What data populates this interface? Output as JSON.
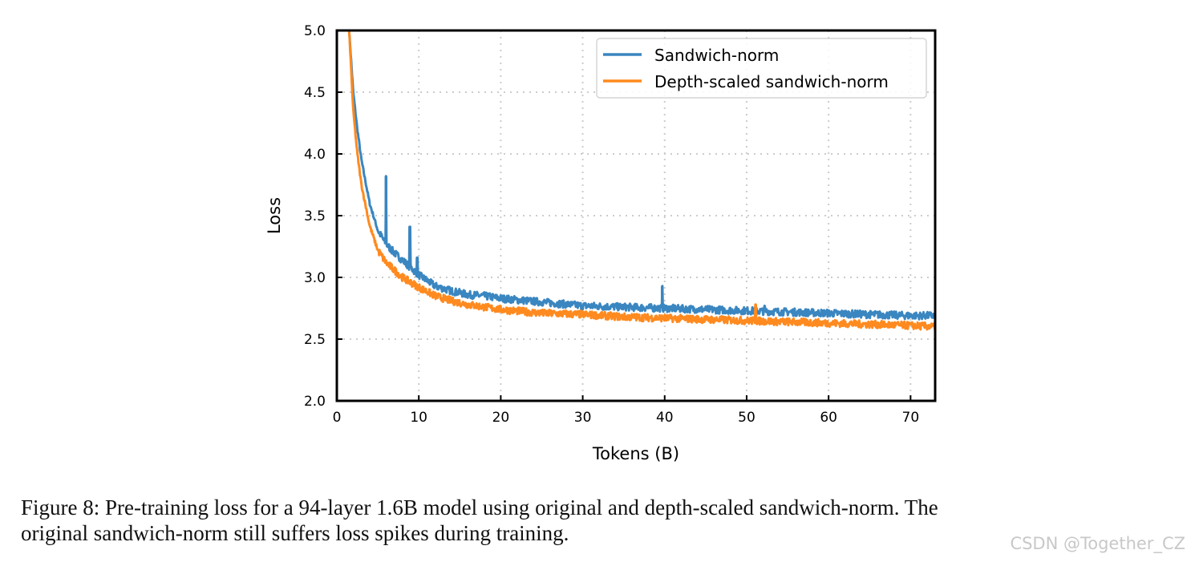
{
  "chart_data": {
    "type": "line",
    "title": "",
    "xlabel": "Tokens (B)",
    "ylabel": "Loss",
    "xlim": [
      0,
      73
    ],
    "ylim": [
      2.0,
      5.0
    ],
    "xticks": [
      "0",
      "10",
      "20",
      "30",
      "40",
      "50",
      "60",
      "70"
    ],
    "yticks": [
      "2.0",
      "2.5",
      "3.0",
      "3.5",
      "4.0",
      "4.5",
      "5.0"
    ],
    "grid": "dotted",
    "legend_position": "top-right",
    "series": [
      {
        "name": "Sandwich-norm",
        "color": "#3a86c0",
        "x": [
          1.5,
          2,
          2.5,
          3,
          4,
          5,
          6,
          7,
          8,
          9,
          10,
          12,
          14,
          16,
          18,
          20,
          25,
          30,
          35,
          40,
          45,
          50,
          55,
          60,
          65,
          70,
          73
        ],
        "y": [
          5.0,
          4.5,
          4.2,
          3.95,
          3.6,
          3.38,
          3.27,
          3.2,
          3.14,
          3.08,
          3.02,
          2.93,
          2.89,
          2.86,
          2.85,
          2.83,
          2.8,
          2.77,
          2.76,
          2.75,
          2.74,
          2.73,
          2.72,
          2.71,
          2.7,
          2.69,
          2.69
        ],
        "spikes": [
          {
            "x": 6.0,
            "y": 3.82
          },
          {
            "x": 8.9,
            "y": 3.41
          },
          {
            "x": 9.8,
            "y": 3.16
          },
          {
            "x": 39.7,
            "y": 2.93
          },
          {
            "x": 52.2,
            "y": 2.77
          }
        ]
      },
      {
        "name": "Depth-scaled sandwich-norm",
        "color": "#ff8a1f",
        "x": [
          1.5,
          2,
          2.5,
          3,
          4,
          5,
          6,
          7,
          8,
          9,
          10,
          12,
          14,
          16,
          18,
          20,
          25,
          30,
          35,
          40,
          45,
          50,
          55,
          60,
          65,
          70,
          73
        ],
        "y": [
          5.0,
          4.35,
          4.0,
          3.75,
          3.42,
          3.22,
          3.12,
          3.06,
          3.0,
          2.96,
          2.92,
          2.85,
          2.81,
          2.78,
          2.76,
          2.74,
          2.71,
          2.7,
          2.68,
          2.67,
          2.66,
          2.65,
          2.64,
          2.63,
          2.62,
          2.61,
          2.6
        ],
        "spikes": [
          {
            "x": 51.1,
            "y": 2.78
          }
        ]
      }
    ]
  },
  "caption": {
    "line1": "Figure 8: Pre-training loss for a 94-layer 1.6B model using original and depth-scaled sandwich-norm. The",
    "line2": "original sandwich-norm still suffers loss spikes during training."
  },
  "watermark": "CSDN @Together_CZ"
}
